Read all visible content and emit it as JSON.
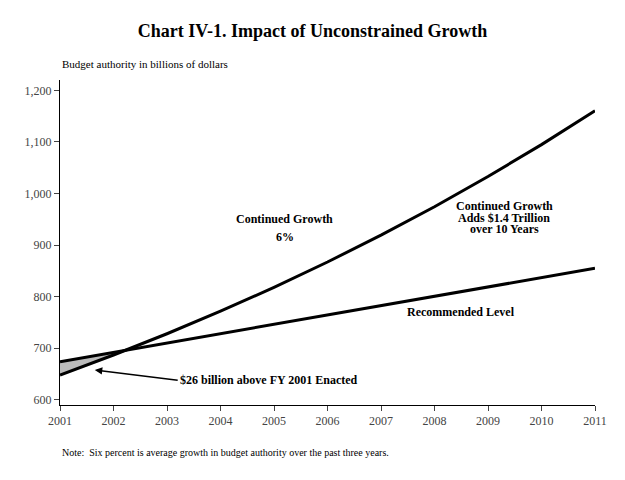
{
  "chart_data": {
    "type": "line",
    "title": "Chart IV-1. Impact of Unconstrained Growth",
    "subtitle": "Budget authority in billions of dollars",
    "note": "Note:  Six percent is average growth in budget authority over the past three years.",
    "x": [
      2001,
      2002,
      2003,
      2004,
      2005,
      2006,
      2007,
      2008,
      2009,
      2010,
      2011
    ],
    "series": [
      {
        "color": "#000000",
        "values": [
          648,
          686.88,
          728.0928,
          771.778368,
          818.08507008,
          867.1701742848,
          919.200384741888,
          974.3524078264013,
          1032.8135522959853,
          1094.7823654337444,
          1160.469307359769
        ]
      },
      {
        "color": "#000000",
        "values": [
          674,
          692.1,
          710.2,
          728.3,
          746.4,
          764.5,
          782.6,
          800.7,
          818.8,
          836.9,
          855
        ]
      }
    ],
    "fill_between": {
      "x": [
        2001,
        2002
      ],
      "color": "#aaaaaa"
    },
    "xlim": [
      2001,
      2011
    ],
    "xticks": [
      2001,
      2002,
      2003,
      2004,
      2005,
      2006,
      2007,
      2008,
      2009,
      2010,
      2011
    ],
    "ylim": [
      590,
      1220
    ],
    "yticks": [
      600,
      700,
      800,
      900,
      {
        "value": 1000,
        "label": "1,000"
      },
      {
        "value": 1100,
        "label": "1,100"
      },
      {
        "value": 1200,
        "label": "1,200"
      }
    ],
    "grid": false,
    "annotations": [
      {
        "text": "Continued Growth",
        "x": 2005.2,
        "y": 950
      },
      {
        "text": "6%",
        "x": 2005.2,
        "y": 915
      },
      {
        "text": "Continued Growth",
        "x": 2009.3,
        "y": 975
      },
      {
        "text": "Adds $1.4 Trillion",
        "x": 2009.3,
        "y": 953
      },
      {
        "text": "over 10 Years",
        "x": 2009.3,
        "y": 931
      },
      {
        "text": "Recommended Level",
        "x": 2008.5,
        "y": 770
      },
      {
        "text": "$26 billion above FY 2001 Enacted",
        "x": 2003.2,
        "y": 638,
        "arrow_to": [
          2001.65,
          658
        ]
      }
    ]
  }
}
